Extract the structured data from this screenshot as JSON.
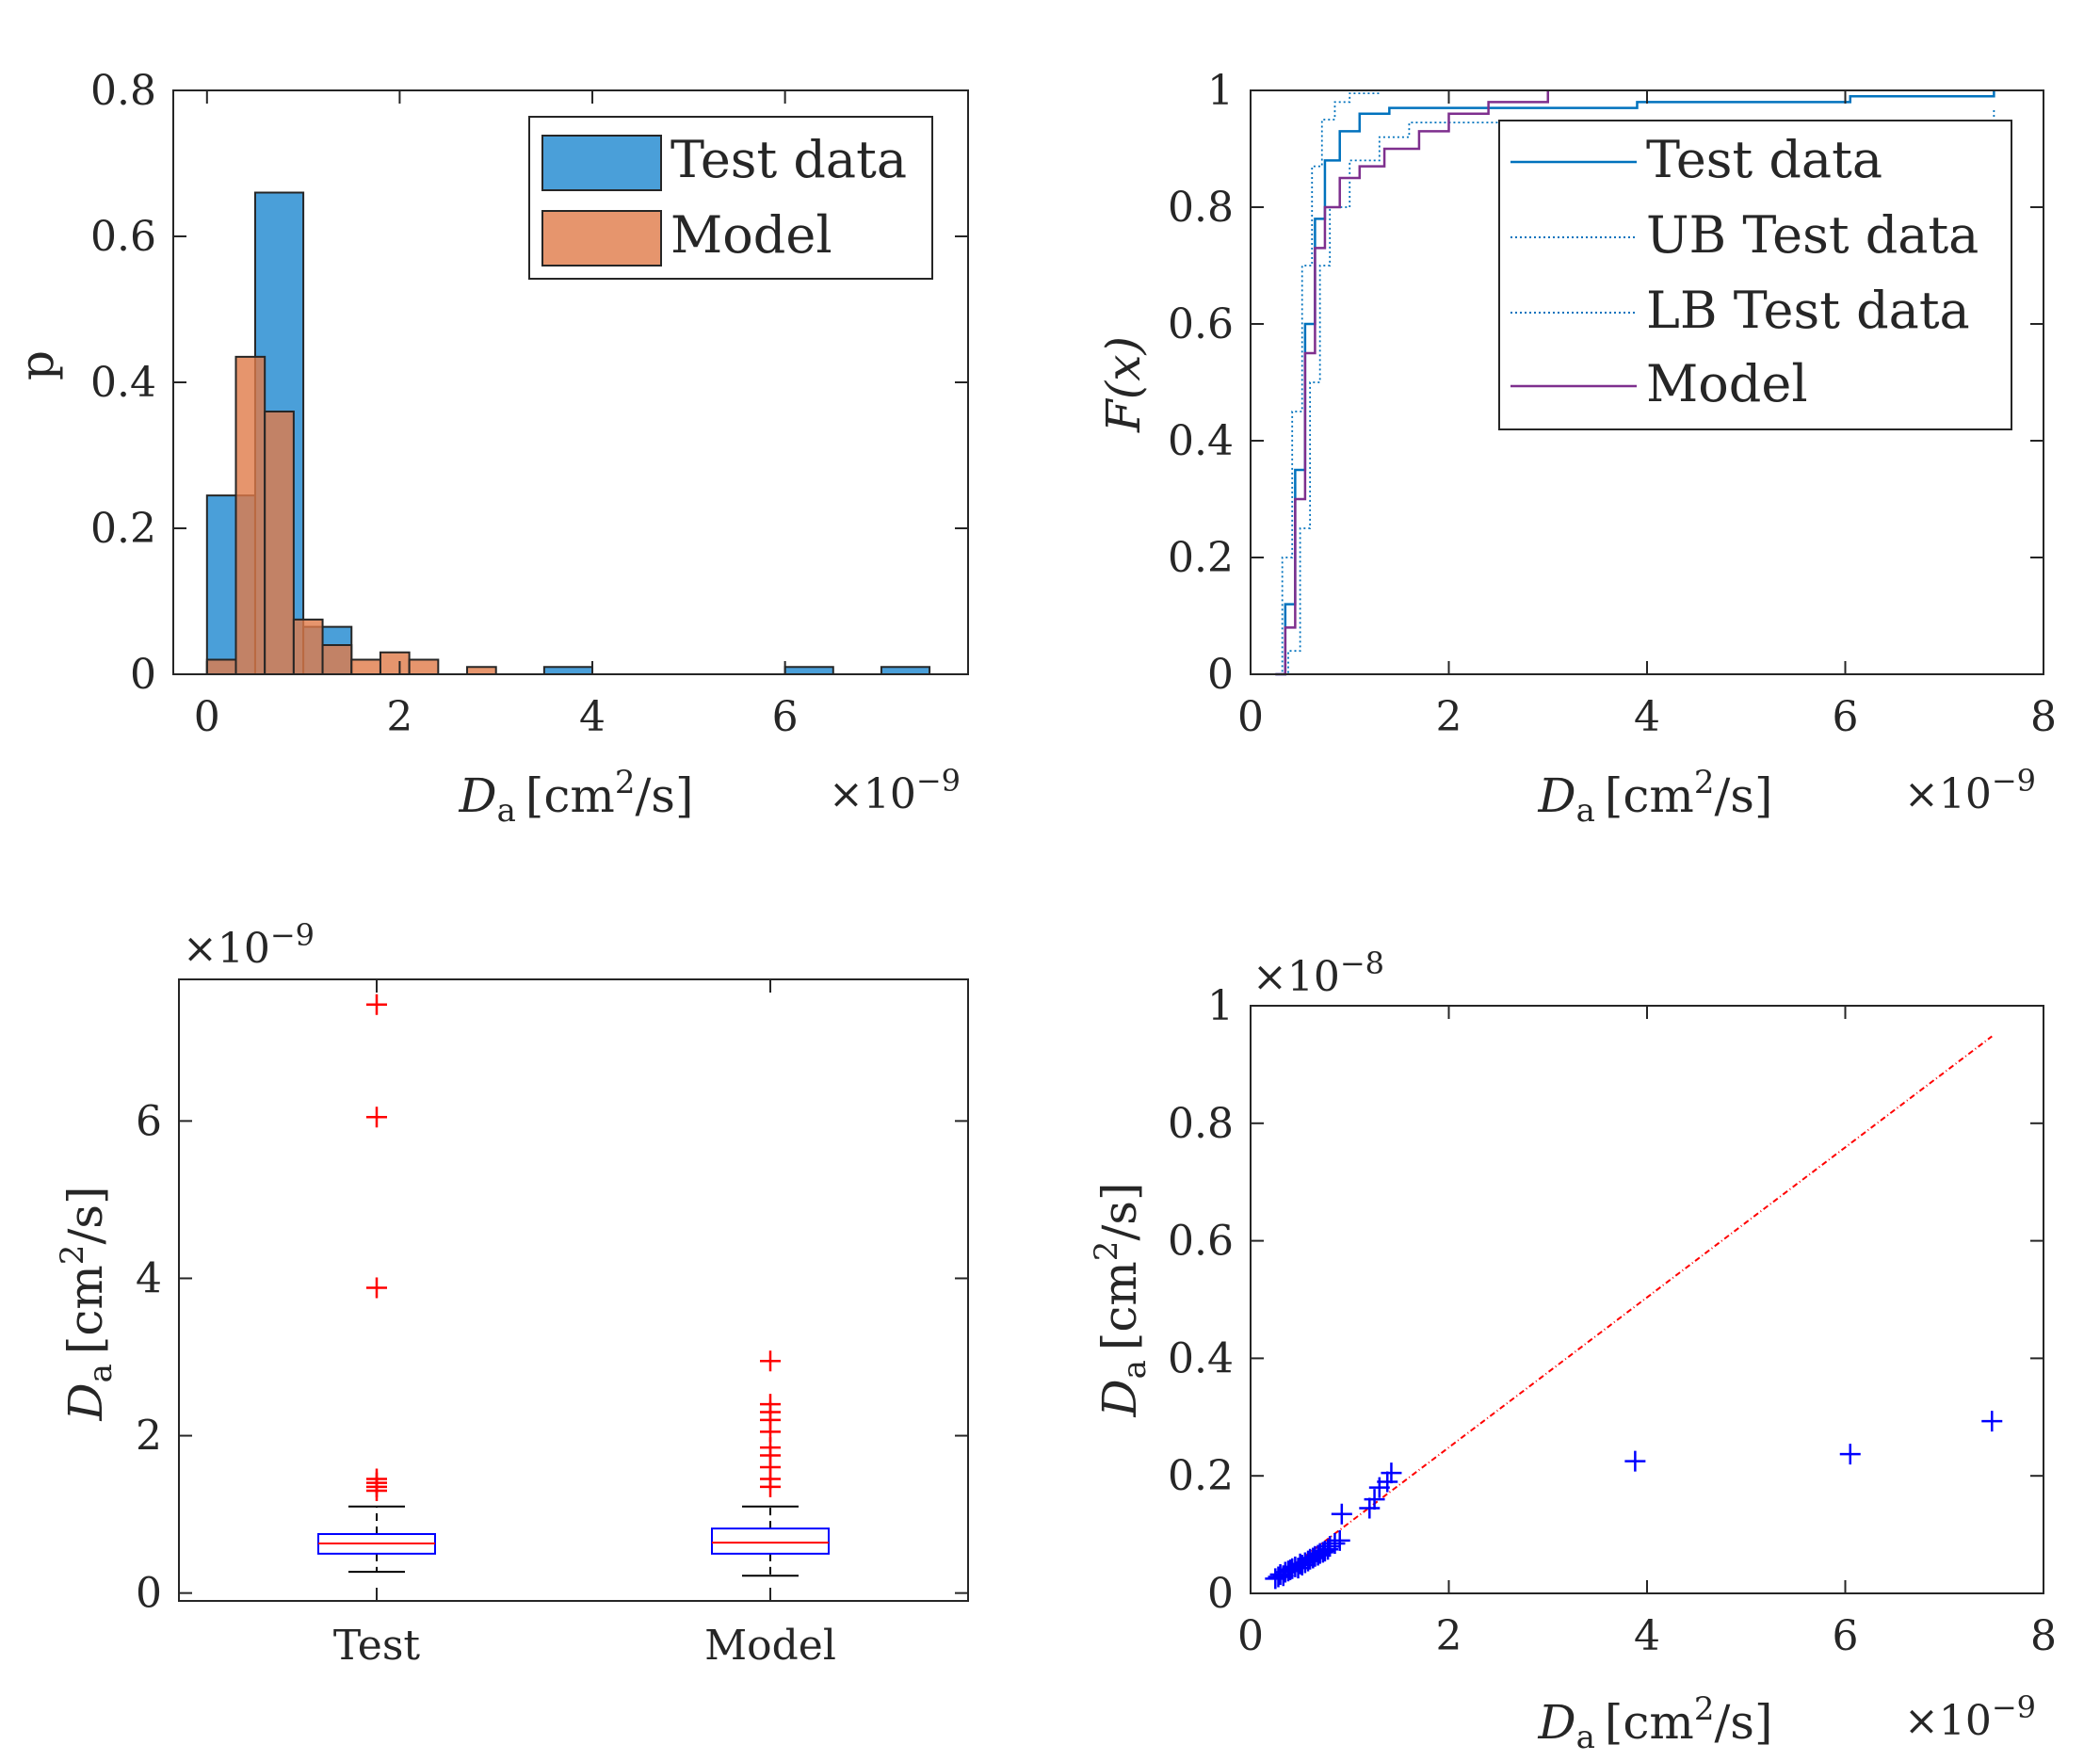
{
  "colors": {
    "test_fill": "#4a9fd9",
    "model_fill": "#e07b49",
    "test_line": "#0072BD",
    "model_line": "#7E2F8E",
    "box_blue": "#0000FF",
    "outlier_red": "#FF0000",
    "axis": "#262626"
  },
  "chart_data": [
    {
      "id": "histogram",
      "type": "bar",
      "ylabel": "p",
      "xlabel_main": "D",
      "xlabel_sub": "a",
      "xlabel_unit": "[cm",
      "xlabel_sup": "2",
      "xlabel_unit_end": "/s]",
      "exponent_base": "×10",
      "exponent_power": "−9",
      "xlim": [
        -0.35,
        7.9
      ],
      "ylim": [
        0,
        0.8
      ],
      "xticks": [
        0,
        2,
        4,
        6
      ],
      "xtick_labels": [
        "0",
        "2",
        "4",
        "6"
      ],
      "yticks": [
        0,
        0.2,
        0.4,
        0.6,
        0.8
      ],
      "ytick_labels": [
        "0",
        "0.2",
        "0.4",
        "0.6",
        "0.8"
      ],
      "legend": [
        "Test data",
        "Model"
      ],
      "series": [
        {
          "name": "Test data",
          "bin_width": 0.5,
          "bins_start": [
            0.0,
            0.5,
            1.0,
            3.5,
            6.0,
            7.0
          ],
          "values": [
            0.245,
            0.66,
            0.065,
            0.01,
            0.01,
            0.01
          ]
        },
        {
          "name": "Model",
          "bin_width": 0.3,
          "bins_start": [
            0.0,
            0.3,
            0.6,
            0.9,
            1.2,
            1.5,
            1.8,
            2.1,
            2.7
          ],
          "values": [
            0.02,
            0.435,
            0.36,
            0.075,
            0.04,
            0.02,
            0.03,
            0.02,
            0.01
          ]
        }
      ]
    },
    {
      "id": "ecdf",
      "type": "line",
      "ylabel": "F(x)",
      "xlabel_main": "D",
      "xlabel_sub": "a",
      "xlabel_unit": "[cm",
      "xlabel_sup": "2",
      "xlabel_unit_end": "/s]",
      "exponent_base": "×10",
      "exponent_power": "−9",
      "xlim": [
        0,
        8
      ],
      "ylim": [
        0,
        1
      ],
      "xticks": [
        0,
        2,
        4,
        6,
        8
      ],
      "xtick_labels": [
        "0",
        "2",
        "4",
        "6",
        "8"
      ],
      "yticks": [
        0,
        0.2,
        0.4,
        0.6,
        0.8,
        1
      ],
      "ytick_labels": [
        "0",
        "0.2",
        "0.4",
        "0.6",
        "0.8",
        "1"
      ],
      "legend": [
        "Test data",
        "UB Test data",
        "LB Test data",
        "Model"
      ],
      "series": [
        {
          "name": "Test data",
          "style": "solid",
          "x": [
            0.25,
            0.35,
            0.45,
            0.55,
            0.65,
            0.75,
            0.9,
            1.1,
            1.4,
            3.9,
            6.05,
            7.5
          ],
          "y": [
            0,
            0.12,
            0.35,
            0.6,
            0.78,
            0.88,
            0.93,
            0.96,
            0.97,
            0.98,
            0.99,
            1
          ]
        },
        {
          "name": "UB Test data",
          "style": "dotted",
          "x": [
            0.25,
            0.32,
            0.42,
            0.52,
            0.62,
            0.72,
            0.85,
            1.0,
            1.3,
            7.5
          ],
          "y": [
            0,
            0.2,
            0.45,
            0.7,
            0.87,
            0.95,
            0.98,
            0.995,
            1,
            1
          ]
        },
        {
          "name": "LB Test data",
          "style": "dotted",
          "x": [
            0.25,
            0.38,
            0.5,
            0.6,
            0.7,
            0.8,
            1.0,
            1.3,
            1.6,
            7.5
          ],
          "y": [
            0,
            0.04,
            0.25,
            0.5,
            0.7,
            0.8,
            0.88,
            0.92,
            0.945,
            0.97
          ]
        },
        {
          "name": "Model",
          "style": "solid",
          "x": [
            0.25,
            0.35,
            0.45,
            0.55,
            0.65,
            0.75,
            0.9,
            1.1,
            1.35,
            1.7,
            2.0,
            2.4,
            3.0
          ],
          "y": [
            0,
            0.08,
            0.3,
            0.55,
            0.73,
            0.8,
            0.85,
            0.87,
            0.9,
            0.93,
            0.96,
            0.98,
            1
          ]
        }
      ]
    },
    {
      "id": "boxplot",
      "type": "box",
      "ylabel_main": "D",
      "ylabel_sub": "a",
      "ylabel_unit": "[cm",
      "ylabel_sup": "2",
      "ylabel_unit_end": "/s]",
      "exponent_base": "×10",
      "exponent_power": "−9",
      "ylim": [
        -0.1,
        7.8
      ],
      "yticks": [
        0,
        2,
        4,
        6
      ],
      "ytick_labels": [
        "0",
        "2",
        "4",
        "6"
      ],
      "categories": [
        "Test",
        "Model"
      ],
      "boxes": [
        {
          "name": "Test",
          "whisker_low": 0.27,
          "q1": 0.5,
          "median": 0.63,
          "q3": 0.75,
          "whisker_high": 1.1,
          "outliers": [
            1.3,
            1.35,
            1.4,
            1.45,
            3.88,
            6.05,
            7.48
          ]
        },
        {
          "name": "Model",
          "whisker_low": 0.22,
          "q1": 0.5,
          "median": 0.64,
          "q3": 0.82,
          "whisker_high": 1.1,
          "outliers": [
            1.35,
            1.45,
            1.6,
            1.75,
            1.85,
            2.05,
            2.2,
            2.3,
            2.4,
            2.95
          ]
        }
      ]
    },
    {
      "id": "scatter",
      "type": "scatter",
      "ylabel_main": "D",
      "ylabel_sub": "a",
      "ylabel_unit": "[cm",
      "ylabel_sup": "2",
      "ylabel_unit_end": "/s]",
      "xlabel_main": "D",
      "xlabel_sub": "a",
      "xlabel_unit": "[cm",
      "xlabel_sup": "2",
      "xlabel_unit_end": "/s]",
      "x_exponent_base": "×10",
      "x_exponent_power": "−9",
      "y_exponent_base": "×10",
      "y_exponent_power": "−8",
      "xlim": [
        0,
        8
      ],
      "ylim": [
        0,
        1
      ],
      "xticks": [
        0,
        2,
        4,
        6,
        8
      ],
      "xtick_labels": [
        "0",
        "2",
        "4",
        "6",
        "8"
      ],
      "yticks": [
        0,
        0.2,
        0.4,
        0.6,
        0.8,
        1
      ],
      "ytick_labels": [
        "0",
        "0.2",
        "0.4",
        "0.6",
        "0.8",
        "1"
      ],
      "reference_line": {
        "x": [
          0.25,
          7.48
        ],
        "y": [
          0.025,
          0.948
        ]
      },
      "points": {
        "x": [
          0.25,
          0.28,
          0.3,
          0.33,
          0.35,
          0.38,
          0.4,
          0.42,
          0.45,
          0.48,
          0.5,
          0.52,
          0.55,
          0.58,
          0.6,
          0.63,
          0.65,
          0.68,
          0.7,
          0.73,
          0.75,
          0.78,
          0.8,
          0.85,
          0.9,
          0.92,
          1.2,
          1.25,
          1.3,
          1.38,
          1.42,
          3.88,
          6.05,
          7.48
        ],
        "y": [
          0.025,
          0.028,
          0.032,
          0.03,
          0.036,
          0.038,
          0.04,
          0.042,
          0.045,
          0.043,
          0.05,
          0.048,
          0.052,
          0.055,
          0.058,
          0.06,
          0.063,
          0.065,
          0.068,
          0.07,
          0.072,
          0.075,
          0.08,
          0.085,
          0.09,
          0.135,
          0.145,
          0.16,
          0.18,
          0.19,
          0.205,
          0.225,
          0.237,
          0.293
        ]
      }
    }
  ]
}
